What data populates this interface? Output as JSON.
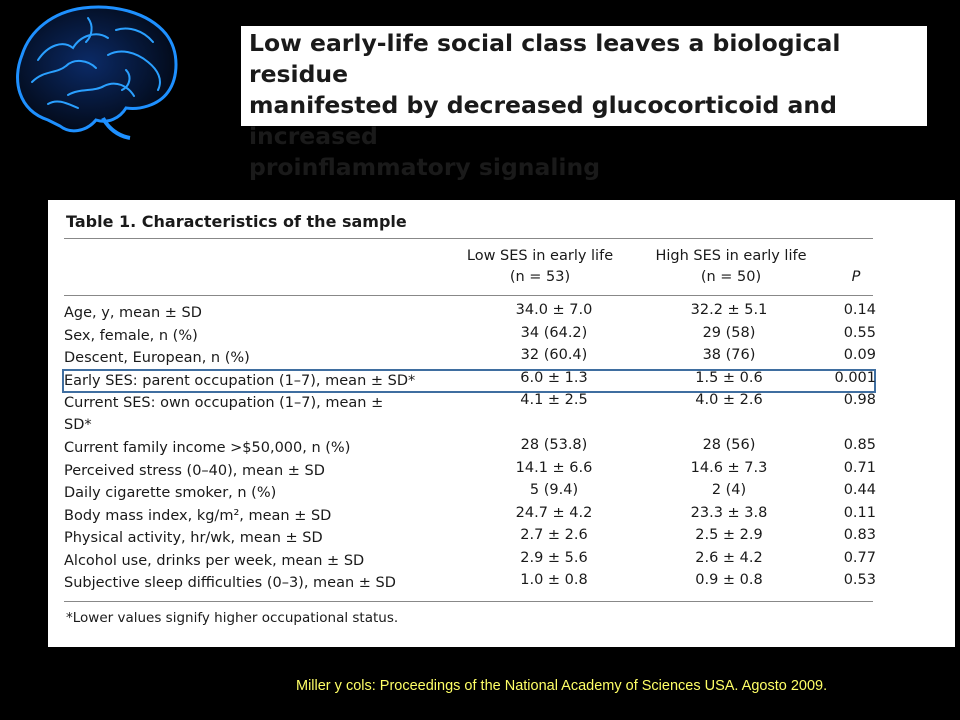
{
  "slide_title": "Low early-life social class leaves a biological residue\nmanifested by decreased glucocorticoid and increased\nproinflammatory signaling",
  "decoration": {
    "icon": "brain-icon",
    "color": "#1e90ff"
  },
  "table": {
    "caption": "Table 1. Characteristics of the sample",
    "columns": {
      "low_label": "Low SES in early life",
      "low_n": "(n = 53)",
      "high_label": "High SES in early life",
      "high_n": "(n = 50)",
      "p_label": "P"
    },
    "rows": [
      {
        "variable": "Age, y, mean ± SD",
        "low": "34.0 ± 7.0",
        "high": "32.2 ± 5.1",
        "p": "0.14"
      },
      {
        "variable": "Sex, female, n (%)",
        "low": "34 (64.2)",
        "high": "29 (58)",
        "p": "0.55"
      },
      {
        "variable": "Descent, European, n (%)",
        "low": "32 (60.4)",
        "high": "38 (76)",
        "p": "0.09"
      },
      {
        "variable": "Early SES: parent occupation (1–7), mean ± SD*",
        "low": "6.0 ± 1.3",
        "high": "1.5 ± 0.6",
        "p": "0.001",
        "highlight": true
      },
      {
        "variable": "Current SES: own occupation (1–7), mean ± SD*",
        "low": "4.1 ± 2.5",
        "high": "4.0 ± 2.6",
        "p": "0.98",
        "tall": true
      },
      {
        "variable": "Current family income >$50,000, n (%)",
        "low": "28 (53.8)",
        "high": "28 (56)",
        "p": "0.85"
      },
      {
        "variable": "Perceived stress (0–40), mean ± SD",
        "low": "14.1 ± 6.6",
        "high": "14.6 ± 7.3",
        "p": "0.71"
      },
      {
        "variable": "Daily cigarette smoker, n (%)",
        "low": "5 (9.4)",
        "high": "2 (4)",
        "p": "0.44"
      },
      {
        "variable": "Body mass index, kg/m², mean ± SD",
        "low": "24.7 ± 4.2",
        "high": "23.3 ± 3.8",
        "p": "0.11"
      },
      {
        "variable": "Physical activity, hr/wk, mean ± SD",
        "low": "2.7 ± 2.6",
        "high": "2.5 ± 2.9",
        "p": "0.83"
      },
      {
        "variable": "Alcohol use, drinks per week, mean ± SD",
        "low": "2.9 ± 5.6",
        "high": "2.6 ± 4.2",
        "p": "0.77"
      },
      {
        "variable": "Subjective sleep difficulties (0–3), mean ± SD",
        "low": "1.0 ± 0.8",
        "high": "0.9 ± 0.8",
        "p": "0.53"
      }
    ],
    "footnote": "*Lower values signify higher occupational status."
  },
  "citation": "Miller y cols: Proceedings of the National Academy of Sciences USA.  Agosto 2009."
}
